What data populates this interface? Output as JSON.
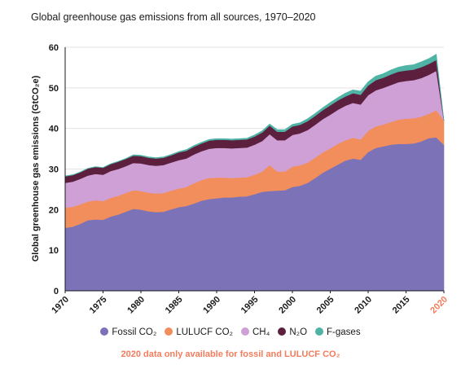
{
  "chart_data": {
    "type": "area",
    "stacked": true,
    "title": "Global greenhouse gas emissions from all sources, 1970–2020",
    "xlabel": "",
    "ylabel": "Global greenhouse gas emissions (GtCO₂e)",
    "xlim": [
      1970,
      2020
    ],
    "ylim": [
      0,
      60
    ],
    "x_ticks": [
      "1970",
      "1975",
      "1980",
      "1985",
      "1990",
      "1995",
      "2000",
      "2005",
      "2010",
      "2015",
      "2020"
    ],
    "y_ticks": [
      "0",
      "10",
      "20",
      "30",
      "40",
      "50",
      "60"
    ],
    "grid": "horizontal",
    "legend_position": "bottom",
    "highlight_tick": "2020",
    "highlight_color": "#f47c5c",
    "note": "2020 data only available for fossil and LULUCF CO₂",
    "x": [
      1970,
      1971,
      1972,
      1973,
      1974,
      1975,
      1976,
      1977,
      1978,
      1979,
      1980,
      1981,
      1982,
      1983,
      1984,
      1985,
      1986,
      1987,
      1988,
      1989,
      1990,
      1991,
      1992,
      1993,
      1994,
      1995,
      1996,
      1997,
      1998,
      1999,
      2000,
      2001,
      2002,
      2003,
      2004,
      2005,
      2006,
      2007,
      2008,
      2009,
      2010,
      2011,
      2012,
      2013,
      2014,
      2015,
      2016,
      2017,
      2018,
      2019,
      2020
    ],
    "series": [
      {
        "name": "Fossil CO₂",
        "color": "#7b72b8",
        "values": [
          15.5,
          15.8,
          16.5,
          17.4,
          17.6,
          17.5,
          18.3,
          18.8,
          19.5,
          20.2,
          20.0,
          19.6,
          19.4,
          19.5,
          20.1,
          20.6,
          20.9,
          21.5,
          22.2,
          22.6,
          22.8,
          23.0,
          23.0,
          23.2,
          23.3,
          23.8,
          24.4,
          24.6,
          24.7,
          24.8,
          25.6,
          25.9,
          26.6,
          27.8,
          29.1,
          30.1,
          31.1,
          32.1,
          32.6,
          32.3,
          34.2,
          35.2,
          35.6,
          36.0,
          36.2,
          36.2,
          36.3,
          36.8,
          37.6,
          37.8,
          36.0
        ]
      },
      {
        "name": "LULUCF CO₂",
        "color": "#f28e5c",
        "values": [
          5.0,
          4.9,
          4.8,
          4.6,
          4.7,
          4.6,
          4.6,
          4.6,
          4.6,
          4.6,
          4.6,
          4.6,
          4.6,
          4.6,
          4.6,
          4.6,
          4.7,
          5.0,
          5.1,
          5.2,
          5.1,
          4.9,
          4.8,
          4.7,
          4.7,
          4.8,
          5.0,
          6.4,
          4.7,
          4.6,
          5.0,
          5.0,
          5.0,
          5.0,
          5.0,
          5.0,
          5.1,
          5.0,
          5.1,
          5.0,
          5.2,
          5.3,
          5.4,
          5.6,
          6.0,
          6.2,
          6.2,
          6.1,
          6.0,
          6.7,
          6.0
        ]
      },
      {
        "name": "CH₄",
        "color": "#cfa0d6",
        "values": [
          6.1,
          6.2,
          6.3,
          6.4,
          6.5,
          6.5,
          6.6,
          6.6,
          6.6,
          6.7,
          6.8,
          6.8,
          6.8,
          6.9,
          6.9,
          7.0,
          7.0,
          7.1,
          7.1,
          7.2,
          7.3,
          7.3,
          7.3,
          7.3,
          7.3,
          7.4,
          7.5,
          7.6,
          7.7,
          7.7,
          7.8,
          7.9,
          8.0,
          8.1,
          8.2,
          8.3,
          8.4,
          8.5,
          8.6,
          8.6,
          8.8,
          8.9,
          9.0,
          9.1,
          9.2,
          9.3,
          9.4,
          9.5,
          9.6,
          9.7,
          0
        ]
      },
      {
        "name": "N₂O",
        "color": "#5c1f3d",
        "values": [
          1.6,
          1.6,
          1.6,
          1.7,
          1.7,
          1.7,
          1.7,
          1.8,
          1.8,
          1.8,
          1.8,
          1.8,
          1.8,
          1.8,
          1.8,
          1.9,
          1.9,
          1.9,
          1.9,
          2.0,
          2.0,
          2.0,
          2.0,
          2.0,
          2.0,
          2.0,
          2.1,
          2.1,
          2.1,
          2.1,
          2.1,
          2.1,
          2.2,
          2.2,
          2.2,
          2.3,
          2.3,
          2.3,
          2.4,
          2.4,
          2.4,
          2.5,
          2.5,
          2.6,
          2.6,
          2.6,
          2.6,
          2.7,
          2.7,
          2.7,
          0
        ]
      },
      {
        "name": "F-gases",
        "color": "#4fb3a6",
        "values": [
          0.1,
          0.1,
          0.1,
          0.1,
          0.1,
          0.1,
          0.1,
          0.1,
          0.1,
          0.2,
          0.2,
          0.2,
          0.2,
          0.2,
          0.2,
          0.2,
          0.3,
          0.3,
          0.3,
          0.3,
          0.3,
          0.3,
          0.3,
          0.3,
          0.3,
          0.4,
          0.4,
          0.4,
          0.5,
          0.5,
          0.5,
          0.5,
          0.6,
          0.6,
          0.6,
          0.7,
          0.7,
          0.8,
          0.8,
          0.9,
          0.9,
          1.0,
          1.0,
          1.1,
          1.1,
          1.2,
          1.2,
          1.3,
          1.3,
          1.4,
          0
        ]
      }
    ]
  }
}
